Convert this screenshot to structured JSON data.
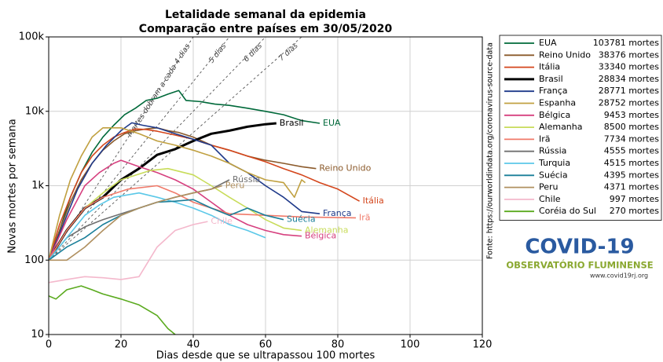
{
  "chart_data": {
    "type": "line",
    "title": "Letalidade semanal da epidemia",
    "subtitle": "Comparação entre países em 30/05/2020",
    "x_label": "Dias desde que se ultrapassou 100 mortes",
    "y_label": "Novas mortes por semana",
    "source": "Fonte: https://ourworldindata.org/coronavirus-source-data",
    "log_y": true,
    "grid": true,
    "legend_position": "outside-right",
    "xlim": [
      0,
      120
    ],
    "xticks": [
      0,
      20,
      40,
      60,
      80,
      100,
      120
    ],
    "ylim": [
      10,
      100000
    ],
    "yticks": [
      10,
      100,
      {
        "value": 1000,
        "label": "1k"
      },
      {
        "value": 10000,
        "label": "10k"
      },
      {
        "value": 100000,
        "label": "100k"
      }
    ],
    "reference_lines": [
      {
        "label": "Mortes dobram a cada 4 dias",
        "x": [
          0,
          40
        ],
        "values": [
          100,
          100000
        ]
      },
      {
        "label": "5 dias",
        "x": [
          0,
          50
        ],
        "values": [
          100,
          100000
        ]
      },
      {
        "label": "6 dias",
        "x": [
          0,
          60
        ],
        "values": [
          100,
          100000
        ]
      },
      {
        "label": "7 dias",
        "x": [
          0,
          70
        ],
        "values": [
          100,
          100000
        ]
      }
    ],
    "series": [
      {
        "name": "EUA",
        "legend_text": "103781 mortes",
        "color": "#00693a",
        "end_label": true,
        "x": [
          0,
          3,
          6,
          9,
          12,
          15,
          18,
          21,
          24,
          27,
          30,
          33,
          36,
          38,
          42,
          46,
          50,
          55,
          60,
          65,
          70,
          75
        ],
        "values": [
          100,
          250,
          700,
          1500,
          2800,
          4500,
          6500,
          9000,
          11000,
          14000,
          15000,
          17000,
          19000,
          14000,
          13500,
          12500,
          12000,
          11000,
          10000,
          9000,
          7500,
          6900
        ]
      },
      {
        "name": "Reino Unido",
        "legend_text": "38376 mortes",
        "color": "#8b5a2b",
        "end_label": true,
        "x": [
          0,
          3,
          6,
          9,
          12,
          15,
          18,
          21,
          24,
          27,
          30,
          33,
          36,
          40,
          45,
          50,
          55,
          60,
          65,
          70,
          74
        ],
        "values": [
          100,
          250,
          600,
          1200,
          2000,
          3000,
          4000,
          5000,
          5500,
          5800,
          6000,
          5500,
          5200,
          4500,
          3500,
          3000,
          2500,
          2200,
          2000,
          1800,
          1700
        ]
      },
      {
        "name": "Itália",
        "legend_text": "33340 mortes",
        "color": "#d4461c",
        "end_label": true,
        "x": [
          0,
          3,
          6,
          9,
          12,
          15,
          18,
          21,
          24,
          27,
          30,
          35,
          40,
          45,
          50,
          55,
          60,
          65,
          70,
          75,
          80,
          86
        ],
        "values": [
          100,
          300,
          700,
          1500,
          2500,
          3500,
          4500,
          5200,
          5800,
          5700,
          5400,
          4800,
          4200,
          3500,
          3000,
          2500,
          2100,
          1700,
          1400,
          1100,
          900,
          620
        ]
      },
      {
        "name": "Brasil",
        "legend_text": "28834 mortes",
        "color": "#000000",
        "end_label": true,
        "width": 3,
        "x": [
          0,
          5,
          10,
          15,
          20,
          25,
          30,
          35,
          40,
          45,
          50,
          55,
          60,
          63
        ],
        "values": [
          100,
          250,
          500,
          700,
          1200,
          1700,
          2600,
          3100,
          4000,
          5000,
          5500,
          6200,
          6700,
          6900
        ]
      },
      {
        "name": "França",
        "legend_text": "28771 mortes",
        "color": "#1f3a8a",
        "end_label": true,
        "x": [
          0,
          4,
          8,
          12,
          16,
          20,
          23,
          26,
          30,
          35,
          40,
          45,
          50,
          55,
          60,
          65,
          70,
          75
        ],
        "values": [
          100,
          300,
          900,
          2000,
          3500,
          5500,
          7000,
          6500,
          6000,
          5000,
          4200,
          3500,
          2000,
          1500,
          1000,
          700,
          450,
          420
        ]
      },
      {
        "name": "Espanha",
        "legend_text": "28752 mortes",
        "color": "#c0a040",
        "end_label": false,
        "x": [
          0,
          3,
          6,
          9,
          12,
          15,
          20,
          25,
          30,
          35,
          40,
          45,
          50,
          55,
          60,
          65,
          68,
          70,
          71
        ],
        "values": [
          100,
          400,
          1200,
          2500,
          4500,
          6000,
          6000,
          5000,
          4000,
          3500,
          3000,
          2500,
          2000,
          1500,
          1200,
          1100,
          700,
          1200,
          1100
        ]
      },
      {
        "name": "Bélgica",
        "legend_text": "9453 mortes",
        "color": "#d6407f",
        "end_label": true,
        "x": [
          0,
          5,
          10,
          14,
          18,
          20,
          25,
          30,
          35,
          40,
          45,
          50,
          55,
          60,
          65,
          70
        ],
        "values": [
          100,
          350,
          1000,
          1500,
          2000,
          2200,
          1800,
          1500,
          1200,
          900,
          600,
          400,
          300,
          250,
          220,
          210
        ]
      },
      {
        "name": "Alemanha",
        "legend_text": "8500 mortes",
        "color": "#c8dc5a",
        "end_label": true,
        "x": [
          0,
          5,
          10,
          15,
          20,
          28,
          33,
          40,
          45,
          50,
          55,
          60,
          65,
          70
        ],
        "values": [
          100,
          250,
          500,
          800,
          1200,
          1600,
          1700,
          1400,
          1000,
          700,
          500,
          350,
          270,
          250
        ]
      },
      {
        "name": "Irã",
        "legend_text": "7734 mortes",
        "color": "#f07a6a",
        "end_label": true,
        "x": [
          0,
          5,
          10,
          15,
          22,
          30,
          35,
          40,
          45,
          50,
          60,
          70,
          85
        ],
        "values": [
          100,
          250,
          500,
          700,
          900,
          1000,
          800,
          600,
          500,
          420,
          400,
          380,
          370
        ]
      },
      {
        "name": "Rússia",
        "legend_text": "4555 mortes",
        "color": "#707070",
        "end_label": true,
        "x": [
          0,
          5,
          10,
          15,
          20,
          25,
          30,
          35,
          40,
          45,
          50
        ],
        "values": [
          100,
          200,
          280,
          350,
          420,
          500,
          600,
          700,
          800,
          900,
          1200
        ]
      },
      {
        "name": "Turquia",
        "legend_text": "4515 mortes",
        "color": "#5bc8e8",
        "end_label": false,
        "x": [
          0,
          5,
          10,
          14,
          18,
          25,
          30,
          35,
          40,
          45,
          50,
          55,
          60
        ],
        "values": [
          100,
          200,
          400,
          550,
          700,
          800,
          700,
          600,
          500,
          400,
          300,
          250,
          200
        ]
      },
      {
        "name": "Suécia",
        "legend_text": "4395 mortes",
        "color": "#1a7f99",
        "end_label": true,
        "x": [
          0,
          5,
          10,
          15,
          20,
          25,
          30,
          35,
          40,
          45,
          50,
          55,
          60,
          65
        ],
        "values": [
          100,
          150,
          200,
          300,
          400,
          500,
          600,
          620,
          650,
          500,
          400,
          500,
          400,
          350
        ]
      },
      {
        "name": "Peru",
        "legend_text": "4371 mortes",
        "color": "#b09060",
        "end_label": true,
        "x": [
          0,
          5,
          10,
          15,
          20,
          25,
          30,
          35,
          40,
          45,
          48
        ],
        "values": [
          100,
          100,
          150,
          250,
          400,
          500,
          600,
          700,
          800,
          900,
          1000
        ]
      },
      {
        "name": "Chile",
        "legend_text": "997 mortes",
        "color": "#f4b8cc",
        "end_label": true,
        "x": [
          0,
          5,
          10,
          15,
          20,
          25,
          30,
          35,
          40,
          44
        ],
        "values": [
          50,
          55,
          60,
          58,
          55,
          60,
          150,
          250,
          300,
          330
        ]
      },
      {
        "name": "Coréia do Sul",
        "legend_text": "270 mortes",
        "color": "#5aaa1e",
        "end_label": false,
        "x": [
          0,
          2,
          5,
          9,
          12,
          15,
          20,
          25,
          30,
          33,
          35
        ],
        "values": [
          33,
          30,
          40,
          45,
          40,
          35,
          30,
          25,
          18,
          12,
          10
        ]
      }
    ]
  },
  "logo": {
    "title": "COVID-19",
    "subtitle": "OBSERVATÓRIO FLUMINENSE",
    "url": "www.covid19rj.org"
  }
}
